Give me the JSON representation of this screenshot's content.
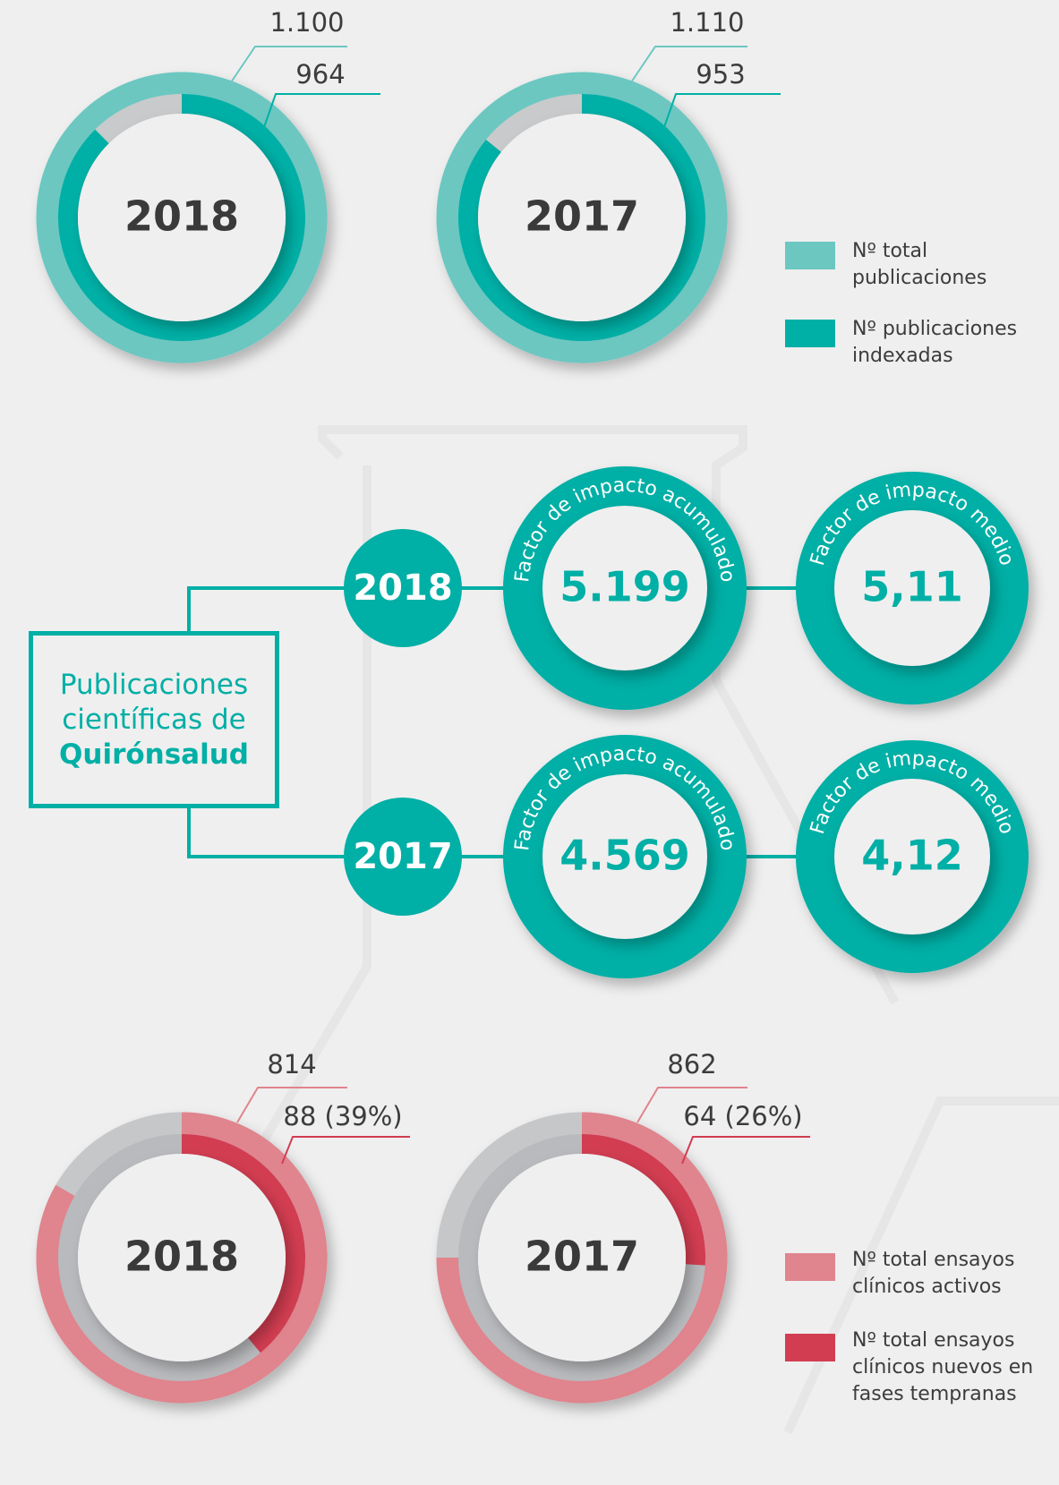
{
  "publications": {
    "colors": {
      "total": "#6cc7c1",
      "indexed": "#00b0a6",
      "rest": "#c9cacb"
    },
    "years": [
      {
        "year": "2018",
        "total": {
          "value": 1100,
          "label": "1.100"
        },
        "indexed": 964
      },
      {
        "year": "2017",
        "total": {
          "value": 1110,
          "label": "1.110"
        },
        "indexed": 953
      }
    ],
    "legend": {
      "total": "Nº total publicaciones",
      "indexed": "Nº publicaciones indexadas"
    }
  },
  "impact": {
    "color": "#00afa5",
    "title": "Publicaciones científicas de",
    "brand": "Quirónsalud",
    "rows": [
      {
        "year": "2018",
        "cumulative_label": "Factor de impacto acumulado",
        "cumulative": "5.199",
        "mean_label": "Factor de impacto medio",
        "mean": "5,11"
      },
      {
        "year": "2017",
        "cumulative_label": "Factor de impacto acumulado",
        "cumulative": "4.569",
        "mean_label": "Factor de impacto medio",
        "mean": "4,12"
      }
    ]
  },
  "trials": {
    "colors": {
      "active": "#e0848e",
      "new": "#d23d51",
      "rest": "#c6c7c9"
    },
    "years": [
      {
        "year": "2018",
        "active": "814",
        "new": {
          "value": 39,
          "label": "88 (39%)"
        }
      },
      {
        "year": "2017",
        "active": "862",
        "new": {
          "value": 26,
          "label": "64 (26%)"
        }
      }
    ],
    "legend": {
      "active": "Nº total ensayos clínicos activos",
      "new": "Nº total ensayos clínicos nuevos en fases tempranas"
    }
  }
}
